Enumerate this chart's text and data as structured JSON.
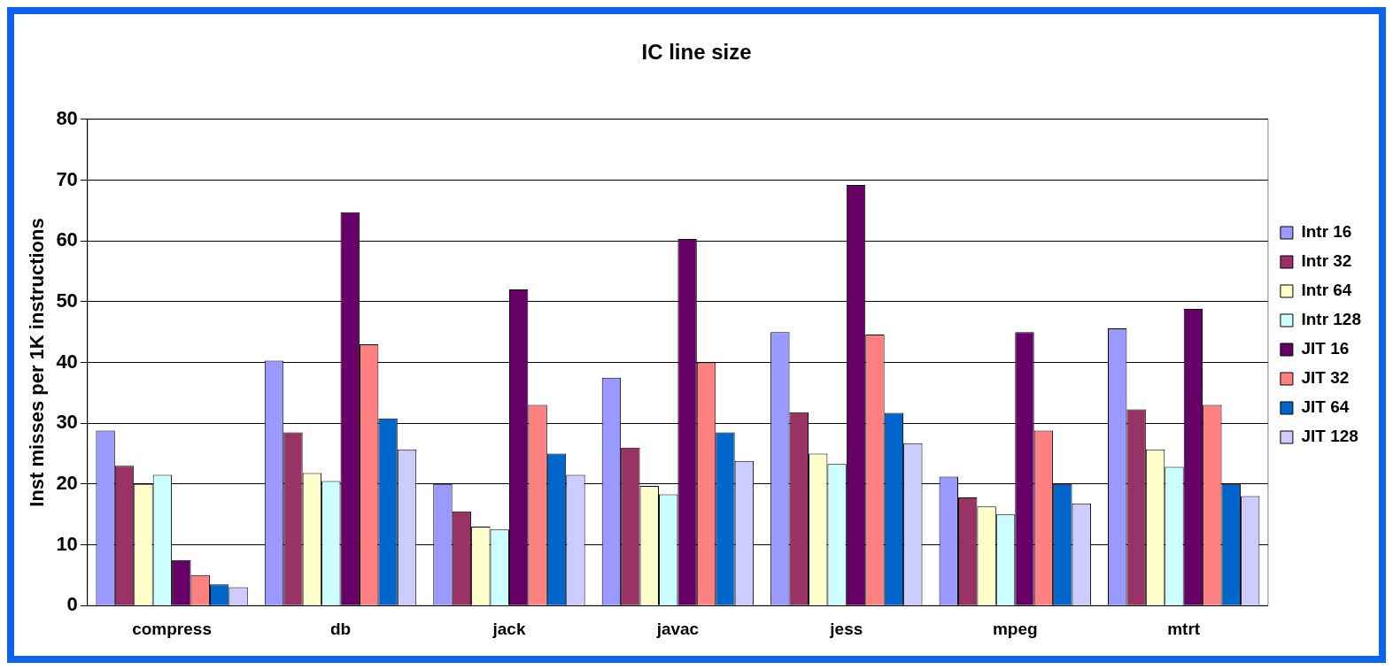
{
  "chart_data": {
    "type": "bar",
    "title": "IC line size",
    "ylabel": "Inst misses per 1K instructions",
    "categories": [
      "compress",
      "db",
      "jack",
      "javac",
      "jess",
      "mpeg",
      "mtrt"
    ],
    "series": [
      {
        "name": "Intr 16",
        "color": "#9999ff",
        "values": [
          28.8,
          40.3,
          20,
          37.5,
          45,
          21.2,
          45.6
        ]
      },
      {
        "name": "Intr 32",
        "color": "#993366",
        "values": [
          23,
          28.5,
          15.5,
          26,
          31.8,
          17.8,
          32.3
        ]
      },
      {
        "name": "Intr 64",
        "color": "#ffffcc",
        "values": [
          20,
          21.8,
          13,
          19.7,
          25,
          16.3,
          25.7
        ]
      },
      {
        "name": "Intr 128",
        "color": "#ccffff",
        "values": [
          21.5,
          20.5,
          12.5,
          18.3,
          23.3,
          15,
          22.8
        ]
      },
      {
        "name": "JIT 16",
        "color": "#660066",
        "values": [
          7.5,
          64.7,
          52,
          60.3,
          69.2,
          45,
          48.8
        ]
      },
      {
        "name": "JIT 32",
        "color": "#ff8080",
        "values": [
          5,
          43,
          33,
          40,
          44.6,
          28.8,
          33
        ]
      },
      {
        "name": "JIT 64",
        "color": "#0066cc",
        "values": [
          3.5,
          30.8,
          25,
          28.5,
          31.7,
          20,
          20
        ]
      },
      {
        "name": "JIT 128",
        "color": "#ccccff",
        "values": [
          3,
          25.7,
          21.5,
          23.8,
          26.7,
          16.8,
          18
        ]
      }
    ],
    "ylim": [
      0,
      80
    ],
    "yticks": [
      0,
      10,
      20,
      30,
      40,
      50,
      60,
      70,
      80
    ],
    "grid": "y",
    "legend": "right"
  }
}
